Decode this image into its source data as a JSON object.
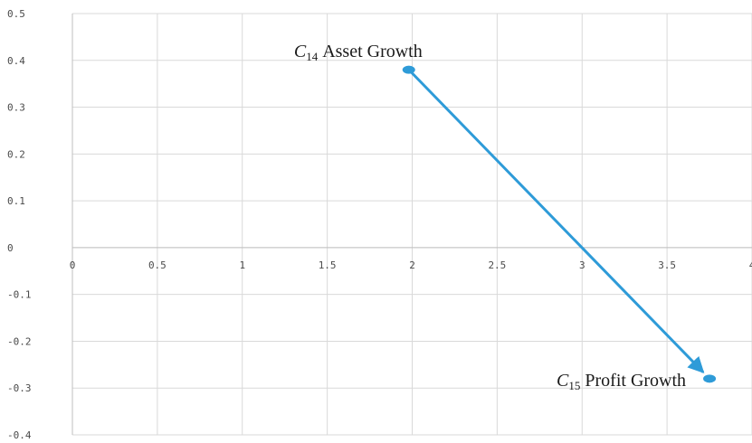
{
  "chart_data": {
    "type": "scatter",
    "title": "",
    "xlabel": "",
    "ylabel": "",
    "xlim": [
      0,
      4
    ],
    "ylim": [
      -0.4,
      0.5
    ],
    "grid": true,
    "legend": "none",
    "x_ticks": [
      "0",
      "0.5",
      "1",
      "1.5",
      "2",
      "2.5",
      "3",
      "3.5",
      "4"
    ],
    "y_ticks": [
      "0.5",
      "0.4",
      "0.3",
      "0.2",
      "0.1",
      "0",
      "-0.1",
      "-0.2",
      "-0.3",
      "-0.4"
    ],
    "points": [
      {
        "var": "C",
        "sub": "14",
        "label": "Asset Growth",
        "x": 1.98,
        "y": 0.38
      },
      {
        "var": "C",
        "sub": "15",
        "label": "Profit Growth",
        "x": 3.75,
        "y": -0.28
      }
    ],
    "arrow": {
      "from": 0,
      "to": 1
    },
    "colors": {
      "series": "#2e9bd8",
      "grid": "#d9d9d9",
      "axis": "#bfbfbf"
    }
  }
}
